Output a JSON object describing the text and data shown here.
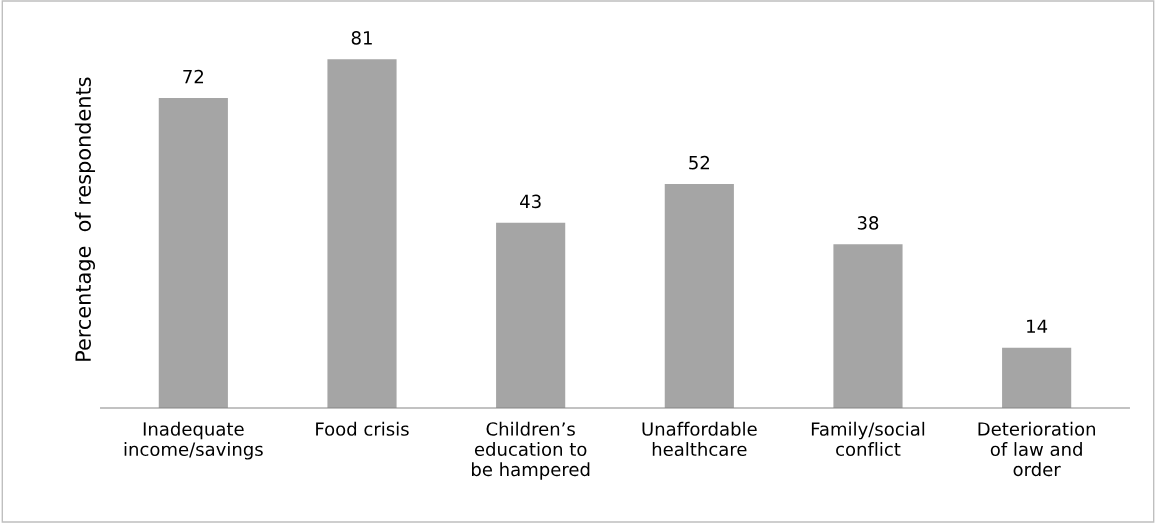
{
  "chart_data": {
    "type": "bar",
    "ylabel": "Percentage  of respondents",
    "categories": [
      "Inadequate\nincome/savings",
      "Food crisis",
      "Children’s\neducation to\nbe hampered",
      "Unaffordable\nhealthcare",
      "Family/social\nconflict",
      "Deterioration\nof law and\norder"
    ],
    "values": [
      72,
      81,
      43,
      52,
      38,
      14
    ],
    "color": "#a5a5a5",
    "data_labels": true,
    "grid": false,
    "legend": false
  }
}
